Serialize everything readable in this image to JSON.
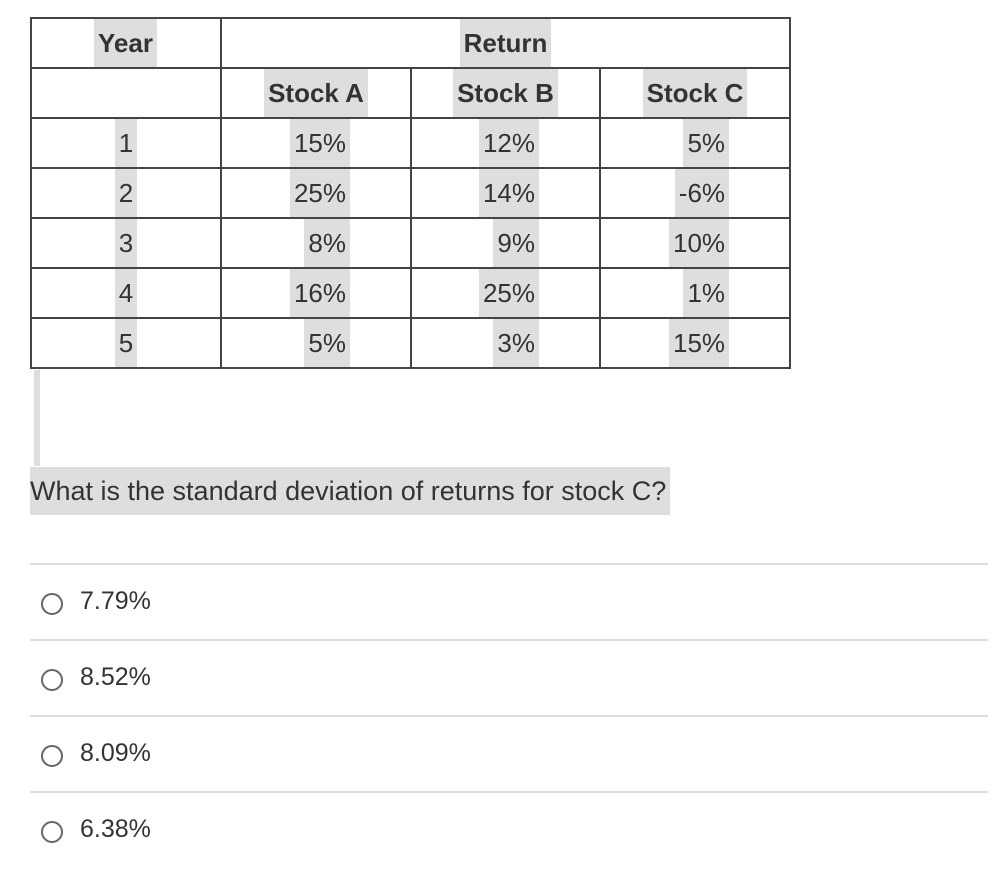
{
  "table": {
    "header": [
      "Year",
      "Return"
    ],
    "subheader": [
      "Stock A",
      "Stock B",
      "Stock C"
    ],
    "rows": [
      [
        "1",
        "15%",
        "12%",
        "5%"
      ],
      [
        "2",
        "25%",
        "14%",
        "-6%"
      ],
      [
        "3",
        "8%",
        "9%",
        "10%"
      ],
      [
        "4",
        "16%",
        "25%",
        "1%"
      ],
      [
        "5",
        "5%",
        "3%",
        "15%"
      ]
    ]
  },
  "question": "What is the standard deviation of returns for stock C?",
  "options": [
    "7.79%",
    "8.52%",
    "8.09%",
    "6.38%"
  ]
}
